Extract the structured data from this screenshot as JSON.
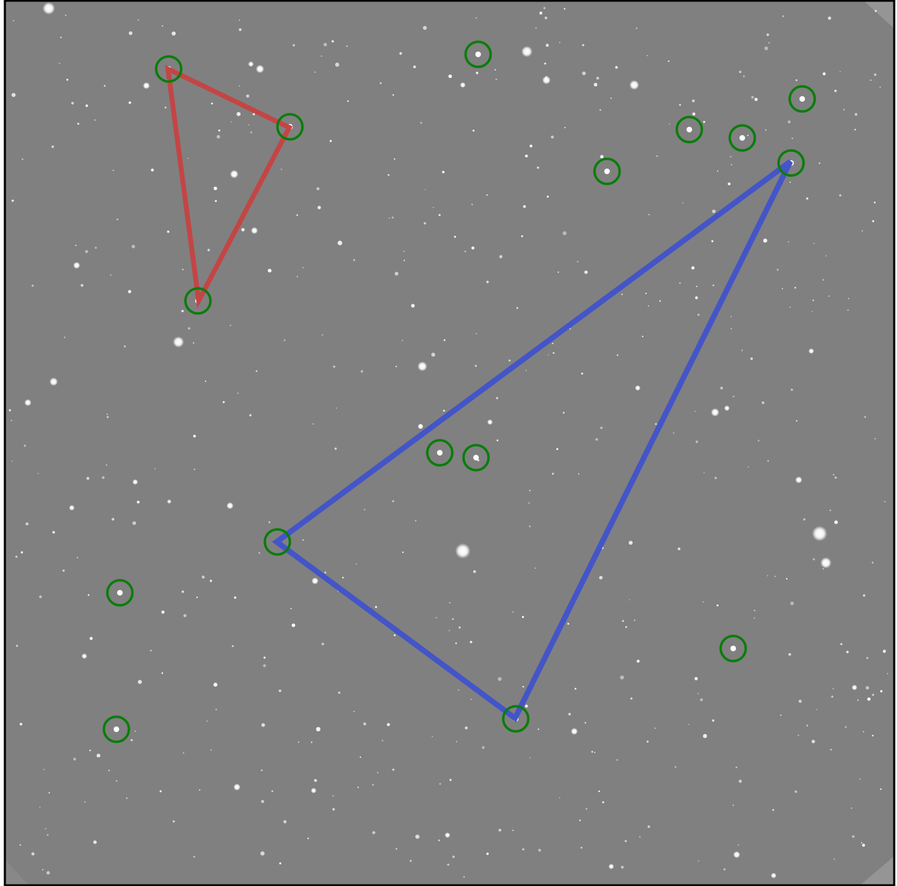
{
  "image": {
    "description_tag": "star-field",
    "background_color": "#808080",
    "border_color": "#000000",
    "star_color": "#ffffff",
    "marker_color": "#0a7d0a",
    "triangle_colors": {
      "small": "#c44545",
      "large": "#4455c8"
    }
  }
}
